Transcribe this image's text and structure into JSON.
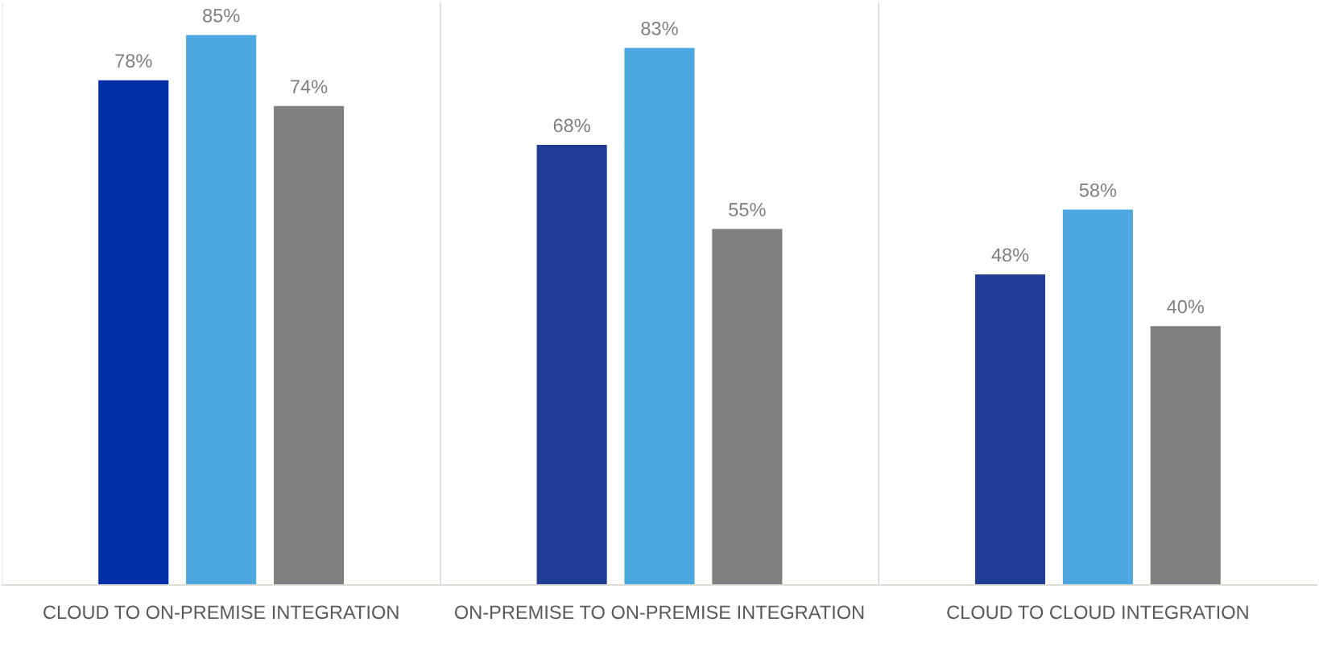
{
  "chart_data": {
    "type": "bar",
    "categories": [
      "CLOUD TO ON-PREMISE INTEGRATION",
      "ON-PREMISE TO ON-PREMISE INTEGRATION",
      "CLOUD TO CLOUD INTEGRATION"
    ],
    "series": [
      {
        "colors": [
          "#002fa7",
          "#223d96",
          "#223d96"
        ],
        "values": [
          78,
          68,
          48
        ],
        "value_labels": [
          "78%",
          "68%",
          "48%"
        ]
      },
      {
        "color": "#4ea8e0",
        "values": [
          85,
          83,
          58
        ],
        "value_labels": [
          "85%",
          "83%",
          "58%"
        ]
      },
      {
        "color": "#7f7f7f",
        "values": [
          74,
          55,
          40
        ],
        "value_labels": [
          "74%",
          "55%",
          "40%"
        ]
      }
    ],
    "ylim": [
      0,
      90
    ],
    "grid": "x",
    "tick_labels": "x",
    "legend": false
  }
}
